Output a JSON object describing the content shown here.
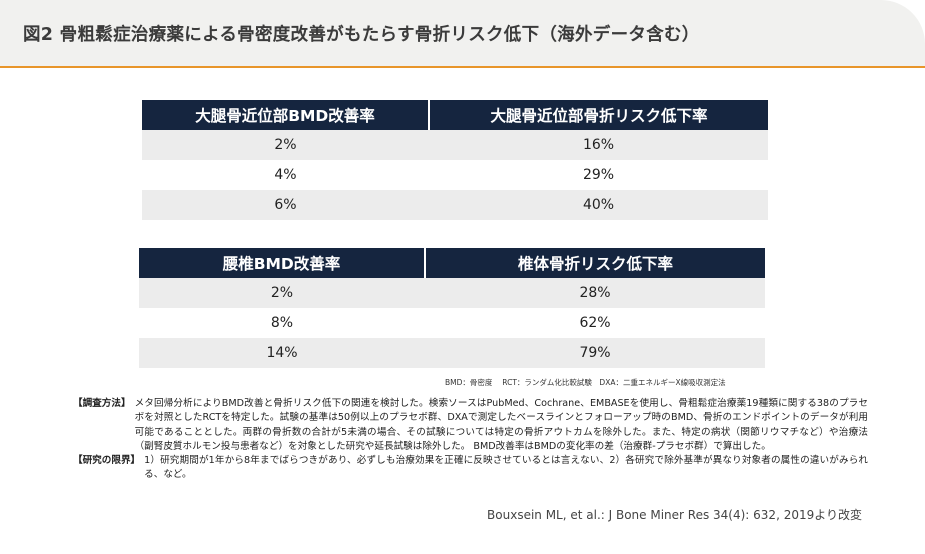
{
  "header": {
    "title": "図2 骨粗鬆症治療薬による骨密度改善がもたらす骨折リスク低下（海外データ含む）"
  },
  "table1": {
    "headers": [
      "大腿骨近位部BMD改善率",
      "大腿骨近位部骨折リスク低下率"
    ],
    "rows": [
      [
        "2%",
        "16%"
      ],
      [
        "4%",
        "29%"
      ],
      [
        "6%",
        "40%"
      ]
    ]
  },
  "table2": {
    "headers": [
      "腰椎BMD改善率",
      "椎体骨折リスク低下率"
    ],
    "rows": [
      [
        "2%",
        "28%"
      ],
      [
        "8%",
        "62%"
      ],
      [
        "14%",
        "79%"
      ]
    ]
  },
  "abbreviations": "BMD：骨密度　 RCT：ランダム化比較試験　DXA：二重エネルギーX線吸収測定法",
  "notes": {
    "method_label": "【調査方法】",
    "method_text": "メタ回帰分析によりBMD改善と骨折リスク低下の関連を検討した。検索ソースはPubMed、Cochrane、EMBASEを使用し、骨粗鬆症治療薬19種類に関する38のプラセボを対照としたRCTを特定した。試験の基準は50例以上のプラセボ群、DXAで測定したベースラインとフォローアップ時のBMD、骨折のエンドポイントのデータが利用可能であることとした。両群の骨折数の合計が5未満の場合、その試験については特定の骨折アウトカムを除外した。また、特定の病状（関節リウマチなど）や治療法（副腎皮質ホルモン投与患者など）を対象とした研究や延長試験は除外した。 BMD改善率はBMDの変化率の差（治療群-プラセボ群）で算出した。",
    "limit_label": "【研究の限界】",
    "limit_text": "1）研究期間が1年から8年までばらつきがあり、必ずしも治療効果を正確に反映させているとは言えない、2）各研究で除外基準が異なり対象者の属性の違いがみられる、など。"
  },
  "citation": "Bouxsein ML, et al.: J Bone Miner Res 34(4): 632, 2019より改変"
}
